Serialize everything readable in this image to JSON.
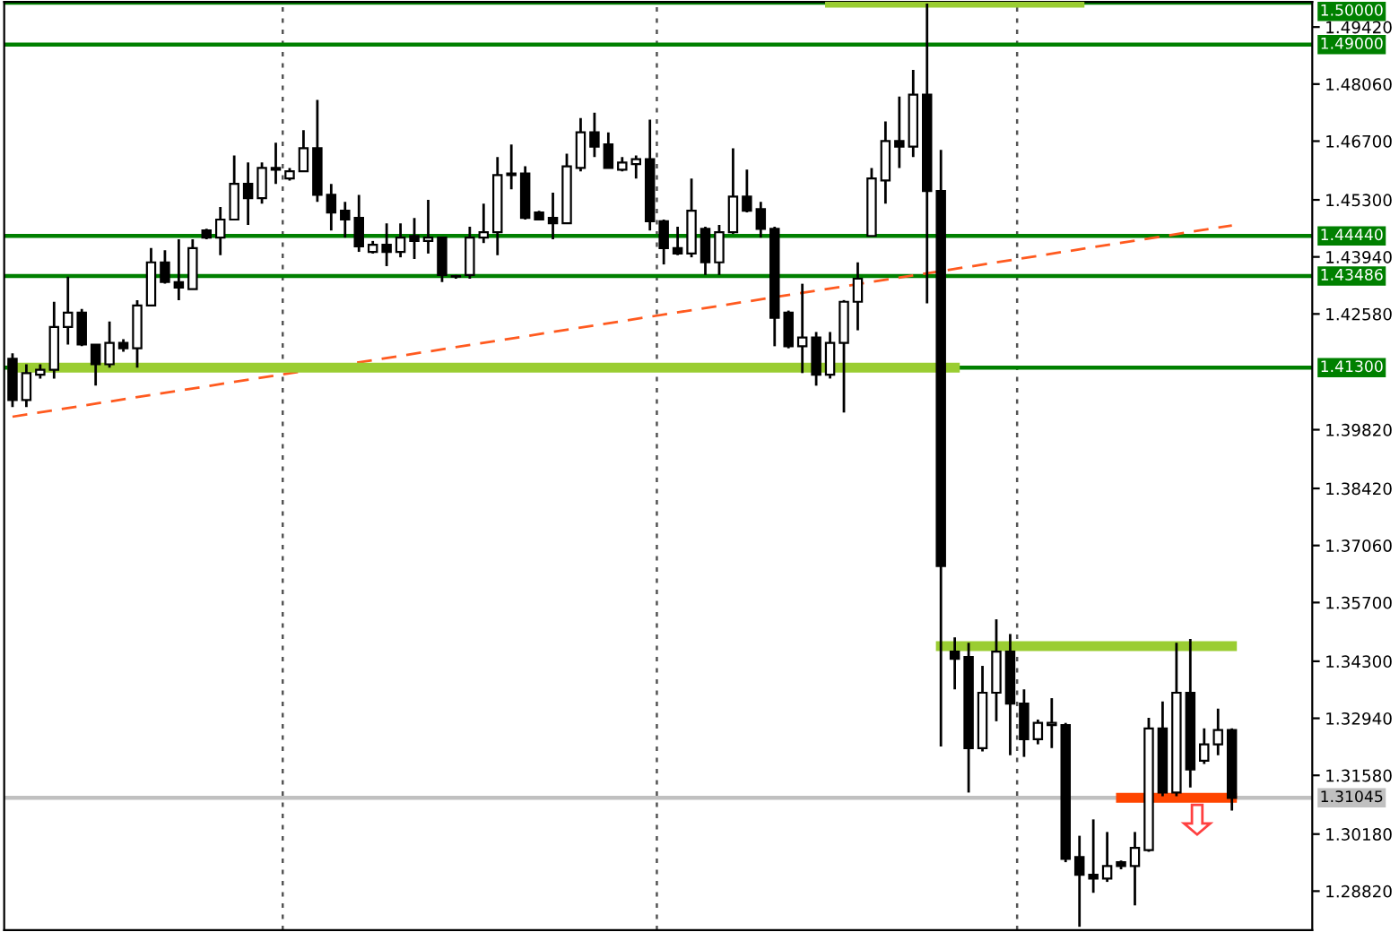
{
  "chart_data": {
    "type": "candlestick",
    "categories": [
      null,
      null,
      null,
      null,
      null,
      null,
      null,
      null,
      null,
      null,
      null,
      null,
      null,
      null,
      null,
      null,
      null,
      null,
      null,
      null,
      null,
      null,
      null,
      null,
      null,
      null,
      null,
      null,
      null,
      null,
      null,
      null,
      null,
      null,
      null,
      null,
      null,
      null,
      null,
      null,
      null,
      null,
      null,
      null,
      null,
      null,
      null,
      null,
      null,
      null,
      null,
      null,
      null,
      null,
      null,
      null,
      null,
      null,
      null,
      null,
      null,
      null,
      null,
      null,
      null,
      null,
      null,
      null,
      null,
      null,
      null,
      null,
      null,
      null,
      null,
      null,
      null,
      null,
      null,
      null,
      null,
      null,
      null,
      null,
      null,
      null,
      null,
      null,
      null
    ],
    "ohlc": [
      [
        1.4151,
        1.4164,
        1.4036,
        1.4053
      ],
      [
        1.4053,
        1.4138,
        1.4036,
        1.4117
      ],
      [
        1.4113,
        1.4138,
        1.4104,
        1.4125
      ],
      [
        1.4125,
        1.4287,
        1.4104,
        1.4227
      ],
      [
        1.4227,
        1.4347,
        1.4185,
        1.4261
      ],
      [
        1.4261,
        1.427,
        1.4181,
        1.4185
      ],
      [
        1.4185,
        1.4185,
        1.4087,
        1.4138
      ],
      [
        1.4138,
        1.424,
        1.413,
        1.4189
      ],
      [
        1.4189,
        1.4198,
        1.4168,
        1.4176
      ],
      [
        1.4176,
        1.4291,
        1.413,
        1.4278
      ],
      [
        1.4278,
        1.4415,
        1.4278,
        1.4381
      ],
      [
        1.4381,
        1.441,
        1.433,
        1.4334
      ],
      [
        1.4334,
        1.4436,
        1.4291,
        1.4321
      ],
      [
        1.4317,
        1.4436,
        1.4317,
        1.4415
      ],
      [
        1.4457,
        1.4461,
        1.4436,
        1.444
      ],
      [
        1.444,
        1.4513,
        1.4398,
        1.4483
      ],
      [
        1.4483,
        1.4636,
        1.4483,
        1.4568
      ],
      [
        1.4568,
        1.4619,
        1.447,
        1.4534
      ],
      [
        1.4534,
        1.4619,
        1.4521,
        1.4606
      ],
      [
        1.4602,
        1.4666,
        1.4568,
        1.4606
      ],
      [
        1.4581,
        1.4606,
        1.4576,
        1.4598
      ],
      [
        1.4598,
        1.4696,
        1.4598,
        1.4653
      ],
      [
        1.4653,
        1.4768,
        1.4525,
        1.4542
      ],
      [
        1.4542,
        1.4568,
        1.4457,
        1.45
      ],
      [
        1.4504,
        1.4525,
        1.444,
        1.4483
      ],
      [
        1.4487,
        1.4542,
        1.4406,
        1.4419
      ],
      [
        1.4406,
        1.4432,
        1.4402,
        1.4423
      ],
      [
        1.4423,
        1.4474,
        1.4372,
        1.4406
      ],
      [
        1.4406,
        1.4474,
        1.4393,
        1.444
      ],
      [
        1.4444,
        1.4487,
        1.4389,
        1.4432
      ],
      [
        1.4432,
        1.453,
        1.4402,
        1.444
      ],
      [
        1.444,
        1.444,
        1.4334,
        1.4351
      ],
      [
        1.4347,
        1.4351,
        1.4342,
        1.4347
      ],
      [
        1.4351,
        1.4466,
        1.4342,
        1.444
      ],
      [
        1.444,
        1.4521,
        1.4427,
        1.4453
      ],
      [
        1.4453,
        1.4632,
        1.4398,
        1.4589
      ],
      [
        1.4589,
        1.4662,
        1.4555,
        1.4593
      ],
      [
        1.4593,
        1.461,
        1.4483,
        1.4487
      ],
      [
        1.45,
        1.4504,
        1.4483,
        1.4483
      ],
      [
        1.4487,
        1.4547,
        1.4436,
        1.4474
      ],
      [
        1.4474,
        1.464,
        1.4474,
        1.461
      ],
      [
        1.4606,
        1.4725,
        1.4598,
        1.4691
      ],
      [
        1.4691,
        1.4738,
        1.4632,
        1.4657
      ],
      [
        1.4662,
        1.4691,
        1.4606,
        1.4606
      ],
      [
        1.4602,
        1.4632,
        1.4598,
        1.4619
      ],
      [
        1.4615,
        1.4636,
        1.4581,
        1.4627
      ],
      [
        1.4627,
        1.4721,
        1.4457,
        1.4479
      ],
      [
        1.4479,
        1.4483,
        1.4376,
        1.4415
      ],
      [
        1.4415,
        1.4466,
        1.4398,
        1.4402
      ],
      [
        1.4402,
        1.4581,
        1.4393,
        1.4504
      ],
      [
        1.4461,
        1.4466,
        1.4351,
        1.4381
      ],
      [
        1.4381,
        1.447,
        1.4351,
        1.4453
      ],
      [
        1.4453,
        1.4653,
        1.4449,
        1.4538
      ],
      [
        1.4538,
        1.4602,
        1.45,
        1.4504
      ],
      [
        1.4508,
        1.4525,
        1.444,
        1.4461
      ],
      [
        1.4461,
        1.4466,
        1.4181,
        1.4249
      ],
      [
        1.4261,
        1.4266,
        1.4176,
        1.4181
      ],
      [
        1.4181,
        1.433,
        1.4117,
        1.4202
      ],
      [
        1.4202,
        1.4215,
        1.4087,
        1.4113
      ],
      [
        1.4113,
        1.4215,
        1.4104,
        1.4189
      ],
      [
        1.4189,
        1.4291,
        1.4023,
        1.4287
      ],
      [
        1.4287,
        1.4381,
        1.4219,
        1.4342
      ],
      [
        1.4444,
        1.4606,
        1.4444,
        1.4581
      ],
      [
        1.4576,
        1.4717,
        1.4521,
        1.467
      ],
      [
        1.467,
        1.4776,
        1.4606,
        1.4657
      ],
      [
        1.4657,
        1.484,
        1.4632,
        1.4781
      ],
      [
        1.4781,
        1.4998,
        1.4283,
        1.4551
      ],
      [
        1.4551,
        1.4649,
        1.3227,
        1.3657
      ],
      [
        1.3453,
        1.3487,
        1.3363,
        1.3436
      ],
      [
        1.344,
        1.3474,
        1.3117,
        1.3223
      ],
      [
        1.3223,
        1.3419,
        1.3215,
        1.3355
      ],
      [
        1.3355,
        1.353,
        1.3287,
        1.3453
      ],
      [
        1.3453,
        1.3495,
        1.3206,
        1.3329
      ],
      [
        1.3329,
        1.3363,
        1.3202,
        1.3244
      ],
      [
        1.3244,
        1.3291,
        1.3232,
        1.3283
      ],
      [
        1.3278,
        1.3342,
        1.3223,
        1.3283
      ],
      [
        1.3278,
        1.3283,
        1.2951,
        1.2959
      ],
      [
        1.2963,
        1.3014,
        1.2797,
        1.2921
      ],
      [
        1.2921,
        1.3053,
        1.2878,
        1.2912
      ],
      [
        1.2912,
        1.3023,
        1.2904,
        1.2942
      ],
      [
        1.2951,
        1.2955,
        1.2934,
        1.2942
      ],
      [
        1.2942,
        1.3023,
        1.2848,
        1.2985
      ],
      [
        1.298,
        1.3295,
        1.2976,
        1.327
      ],
      [
        1.327,
        1.3334,
        1.3108,
        1.3117
      ],
      [
        1.3117,
        1.3474,
        1.3108,
        1.3355
      ],
      [
        1.3355,
        1.3483,
        1.3129,
        1.3172
      ],
      [
        1.3193,
        1.327,
        1.3185,
        1.3232
      ],
      [
        1.3232,
        1.3317,
        1.3206,
        1.3266
      ],
      [
        1.3266,
        1.327,
        1.3074,
        1.3104
      ]
    ],
    "series": [
      {
        "type": "line",
        "values": [
          1.4013,
          null,
          null,
          null,
          null,
          null,
          null,
          null,
          null,
          null,
          null,
          null,
          null,
          null,
          null,
          null,
          null,
          null,
          null,
          null,
          null,
          null,
          null,
          null,
          null,
          null,
          null,
          null,
          null,
          null,
          null,
          null,
          null,
          null,
          null,
          null,
          null,
          null,
          null,
          null,
          null,
          null,
          null,
          null,
          null,
          null,
          null,
          null,
          null,
          null,
          null,
          null,
          null,
          null,
          null,
          null,
          null,
          null,
          null,
          null,
          null,
          null,
          null,
          null,
          null,
          null,
          null,
          null,
          null,
          null,
          null,
          null,
          null,
          null,
          null,
          null,
          null,
          null,
          null,
          null,
          null,
          null,
          null,
          null,
          null,
          null,
          null,
          null,
          1.4469
        ],
        "color": "#ff5a1f",
        "line_style": "dashed"
      },
      {
        "type": "line",
        "values": [
          null,
          null,
          null,
          null,
          null,
          null,
          null,
          null,
          null,
          null,
          null,
          null,
          null,
          null,
          null,
          null,
          null,
          null,
          null,
          null,
          null,
          null,
          null,
          null,
          null,
          null,
          null,
          null,
          null,
          null,
          null,
          null,
          null,
          null,
          null,
          null,
          null,
          null,
          null,
          null,
          null,
          null,
          null,
          null,
          null,
          null,
          null,
          null,
          null,
          null,
          null,
          null,
          null,
          null,
          null,
          null,
          null,
          null,
          null,
          1.5,
          null,
          null,
          null,
          null,
          null,
          null,
          null,
          null,
          null,
          null,
          null,
          null,
          null,
          null,
          null,
          null,
          null,
          1.5,
          null,
          null,
          null,
          null,
          null,
          null,
          null,
          null,
          null,
          null,
          null
        ],
        "color": "#9acd32",
        "line_style": "solid"
      },
      {
        "type": "line",
        "values": [
          1.413,
          null,
          null,
          null,
          null,
          null,
          null,
          null,
          null,
          null,
          null,
          null,
          null,
          null,
          null,
          null,
          null,
          null,
          null,
          null,
          null,
          null,
          null,
          null,
          null,
          null,
          null,
          null,
          null,
          null,
          null,
          null,
          null,
          null,
          null,
          null,
          null,
          null,
          null,
          null,
          null,
          null,
          null,
          null,
          null,
          null,
          null,
          null,
          null,
          null,
          null,
          null,
          null,
          null,
          null,
          null,
          null,
          null,
          null,
          null,
          null,
          null,
          null,
          null,
          null,
          null,
          null,
          null,
          1.413,
          null,
          null,
          null,
          null,
          null,
          null,
          null,
          null,
          null,
          null,
          null,
          null,
          null,
          null,
          null,
          null,
          null,
          null,
          null,
          null
        ],
        "color": "#9acd32",
        "line_style": "solid"
      },
      {
        "type": "line",
        "values": [
          null,
          null,
          null,
          null,
          null,
          null,
          null,
          null,
          null,
          null,
          null,
          null,
          null,
          null,
          null,
          null,
          null,
          null,
          null,
          null,
          null,
          null,
          null,
          null,
          null,
          null,
          null,
          null,
          null,
          null,
          null,
          null,
          null,
          null,
          null,
          null,
          null,
          null,
          null,
          null,
          null,
          null,
          null,
          null,
          null,
          null,
          null,
          null,
          null,
          null,
          null,
          null,
          null,
          null,
          null,
          null,
          null,
          null,
          null,
          null,
          null,
          null,
          null,
          null,
          null,
          null,
          null,
          1.3466,
          null,
          null,
          null,
          null,
          null,
          null,
          null,
          null,
          null,
          null,
          null,
          null,
          null,
          null,
          null,
          null,
          null,
          null,
          null,
          null,
          1.3466
        ],
        "color": "#9acd32",
        "line_style": "solid"
      },
      {
        "type": "line",
        "values": [
          null,
          null,
          null,
          null,
          null,
          null,
          null,
          null,
          null,
          null,
          null,
          null,
          null,
          null,
          null,
          null,
          null,
          null,
          null,
          null,
          null,
          null,
          null,
          null,
          null,
          null,
          null,
          null,
          null,
          null,
          null,
          null,
          null,
          null,
          null,
          null,
          null,
          null,
          null,
          null,
          null,
          null,
          null,
          null,
          null,
          null,
          null,
          null,
          null,
          null,
          null,
          null,
          null,
          null,
          null,
          null,
          null,
          null,
          null,
          null,
          null,
          null,
          null,
          null,
          null,
          null,
          null,
          null,
          null,
          null,
          null,
          null,
          null,
          null,
          null,
          null,
          null,
          null,
          null,
          null,
          1.31045,
          null,
          null,
          null,
          null,
          null,
          null,
          null,
          1.31045
        ],
        "color": "#ff4500",
        "line_style": "solid"
      }
    ],
    "ref_lines": [
      {
        "axis": "y",
        "value": 1.5,
        "label": "1.50000",
        "color": "#008000"
      },
      {
        "axis": "y",
        "value": 1.49,
        "label": "1.49000",
        "color": "#008000"
      },
      {
        "axis": "y",
        "value": 1.4444,
        "label": "1.44440",
        "color": "#008000"
      },
      {
        "axis": "y",
        "value": 1.43486,
        "label": "1.43486",
        "color": "#008000"
      },
      {
        "axis": "y",
        "value": 1.413,
        "label": "1.41300",
        "color": "#008000"
      },
      {
        "axis": "y",
        "value": 1.31045,
        "label": "1.31045",
        "color": "#c0c0c0"
      }
    ],
    "ylim": [
      1.2789,
      1.5002
    ],
    "yticks": [
      {
        "value": 1.4942,
        "label": "1.49420"
      },
      {
        "value": 1.4806,
        "label": "1.48060"
      },
      {
        "value": 1.467,
        "label": "1.46700"
      },
      {
        "value": 1.453,
        "label": "1.45300"
      },
      {
        "value": 1.4394,
        "label": "1.43940"
      },
      {
        "value": 1.4258,
        "label": "1.42580"
      },
      {
        "value": 1.3982,
        "label": "1.39820"
      },
      {
        "value": 1.3842,
        "label": "1.38420"
      },
      {
        "value": 1.3706,
        "label": "1.37060"
      },
      {
        "value": 1.357,
        "label": "1.35700"
      },
      {
        "value": 1.343,
        "label": "1.34300"
      },
      {
        "value": 1.3294,
        "label": "1.32940"
      },
      {
        "value": 1.3158,
        "label": "1.31580"
      },
      {
        "value": 1.3018,
        "label": "1.30180"
      },
      {
        "value": 1.2882,
        "label": "1.28820"
      }
    ],
    "tick_labels": "y",
    "grid": false
  }
}
